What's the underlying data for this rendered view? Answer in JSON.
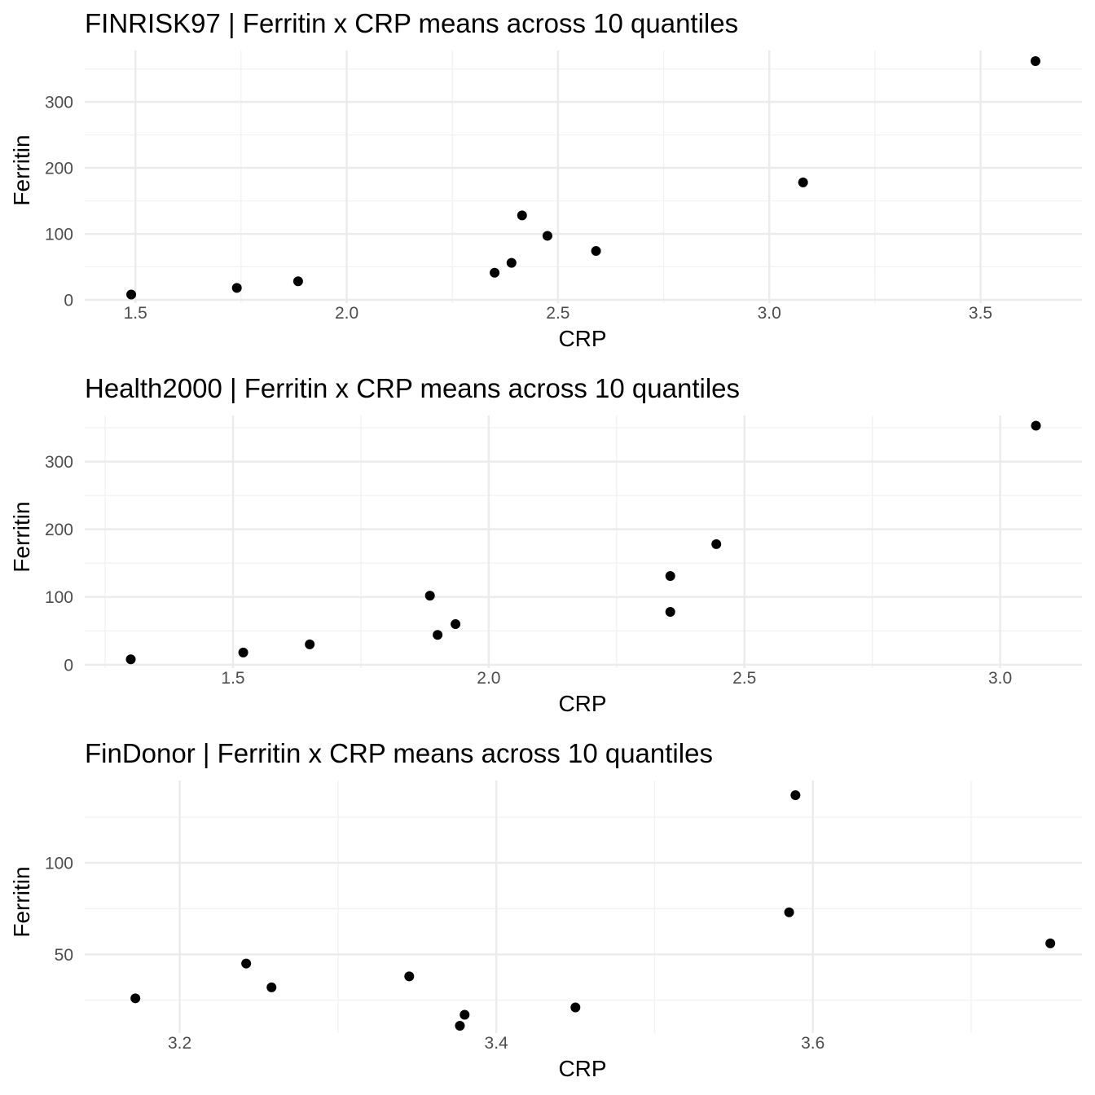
{
  "chart_data": [
    {
      "type": "scatter",
      "title": "FINRISK97 | Ferritin x CRP means across 10 quantiles",
      "xlabel": "CRP",
      "ylabel": "Ferritin",
      "xlim": [
        1.38,
        3.74
      ],
      "ylim": [
        -5,
        378
      ],
      "xticks": [
        1.5,
        2.0,
        2.5,
        3.0,
        3.5
      ],
      "xtick_labels": [
        "1.5",
        "2.0",
        "2.5",
        "3.0",
        "3.5"
      ],
      "xminor": [
        1.75,
        2.25,
        2.75,
        3.25
      ],
      "yticks": [
        0,
        100,
        200,
        300
      ],
      "ytick_labels": [
        "0",
        "100",
        "200",
        "300"
      ],
      "yminor": [
        50,
        150,
        250,
        350
      ],
      "grid": true,
      "points": [
        {
          "x": 1.49,
          "y": 8
        },
        {
          "x": 1.74,
          "y": 18
        },
        {
          "x": 1.885,
          "y": 28
        },
        {
          "x": 2.35,
          "y": 41
        },
        {
          "x": 2.39,
          "y": 56
        },
        {
          "x": 2.415,
          "y": 128
        },
        {
          "x": 2.475,
          "y": 97
        },
        {
          "x": 2.59,
          "y": 74
        },
        {
          "x": 3.08,
          "y": 178
        },
        {
          "x": 3.63,
          "y": 362
        }
      ]
    },
    {
      "type": "scatter",
      "title": "Health2000 | Ferritin x CRP means across 10 quantiles",
      "xlabel": "CRP",
      "ylabel": "Ferritin",
      "xlim": [
        1.21,
        3.16
      ],
      "ylim": [
        -5,
        368
      ],
      "xticks": [
        1.5,
        2.0,
        2.5,
        3.0
      ],
      "xtick_labels": [
        "1.5",
        "2.0",
        "2.5",
        "3.0"
      ],
      "xminor": [
        1.25,
        1.75,
        2.25,
        2.75
      ],
      "yticks": [
        0,
        100,
        200,
        300
      ],
      "ytick_labels": [
        "0",
        "100",
        "200",
        "300"
      ],
      "yminor": [
        50,
        150,
        250,
        350
      ],
      "grid": true,
      "points": [
        {
          "x": 1.3,
          "y": 8
        },
        {
          "x": 1.52,
          "y": 18
        },
        {
          "x": 1.65,
          "y": 30
        },
        {
          "x": 1.885,
          "y": 102
        },
        {
          "x": 1.9,
          "y": 44
        },
        {
          "x": 1.935,
          "y": 60
        },
        {
          "x": 2.355,
          "y": 78
        },
        {
          "x": 2.355,
          "y": 131
        },
        {
          "x": 2.445,
          "y": 178
        },
        {
          "x": 3.07,
          "y": 353
        }
      ]
    },
    {
      "type": "scatter",
      "title": "FinDonor | Ferritin x CRP means across 10 quantiles",
      "xlabel": "CRP",
      "ylabel": "Ferritin",
      "xlim": [
        3.14,
        3.77
      ],
      "ylim": [
        7,
        145
      ],
      "xticks": [
        3.2,
        3.4,
        3.6
      ],
      "xtick_labels": [
        "3.2",
        "3.4",
        "3.6"
      ],
      "xminor": [
        3.3,
        3.5,
        3.7
      ],
      "yticks": [
        50,
        100
      ],
      "ytick_labels": [
        "50",
        "100"
      ],
      "yminor": [
        25,
        75,
        125
      ],
      "grid": true,
      "points": [
        {
          "x": 3.172,
          "y": 26
        },
        {
          "x": 3.242,
          "y": 45
        },
        {
          "x": 3.258,
          "y": 32
        },
        {
          "x": 3.345,
          "y": 38
        },
        {
          "x": 3.377,
          "y": 11
        },
        {
          "x": 3.38,
          "y": 17
        },
        {
          "x": 3.45,
          "y": 21
        },
        {
          "x": 3.585,
          "y": 73
        },
        {
          "x": 3.589,
          "y": 137
        },
        {
          "x": 3.75,
          "y": 56
        }
      ]
    }
  ]
}
